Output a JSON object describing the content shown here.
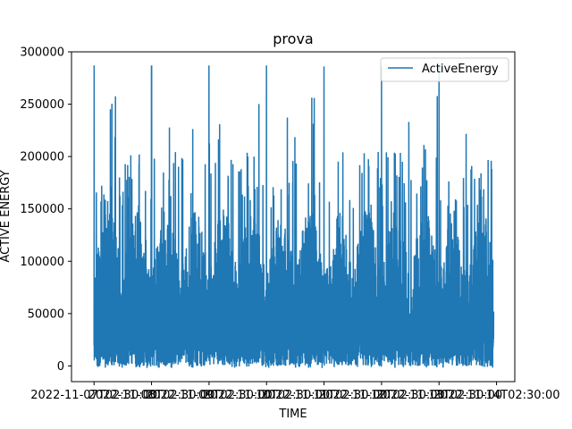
{
  "chart_data": {
    "type": "line",
    "title": "prova",
    "xlabel": "TIME",
    "ylabel": "ACTIVE ENERGY",
    "ylim": [
      -15000,
      300000
    ],
    "yticks": [
      0,
      50000,
      100000,
      150000,
      200000,
      250000,
      300000
    ],
    "ytick_labels": [
      "0",
      "50000",
      "100000",
      "150000",
      "200000",
      "250000",
      "300000"
    ],
    "xtick_labels": [
      "2022-11-07T02:30:00",
      "2022-11-08T02:30:00",
      "2022-11-09T02:30:00",
      "2022-11-10T02:30:00",
      "2022-11-11T02:30:00",
      "2022-11-12T02:30:00",
      "2022-11-13T02:30:00",
      "2022-11-14T02:30:00"
    ],
    "legend_position": "top-right",
    "color": "#1f77b4",
    "series": [
      {
        "name": "ActiveEnergy",
        "peaks": [
          {
            "x": "2022-11-07T02:30:00",
            "y": 287000
          },
          {
            "x": "2022-11-08T02:30:00",
            "y": 287000
          },
          {
            "x": "2022-11-09T02:30:00",
            "y": 287000
          },
          {
            "x": "2022-11-10T02:30:00",
            "y": 287000
          },
          {
            "x": "2022-11-11T02:30:00",
            "y": 286000
          },
          {
            "x": "2022-11-12T02:30:00",
            "y": 286000
          },
          {
            "x": "2022-11-13T02:30:00",
            "y": 287000
          },
          {
            "x": "2022-11-14T02:30:00",
            "y": 258000
          }
        ],
        "typical_high": 150000,
        "typical_low": 0,
        "min": -2000
      }
    ]
  }
}
